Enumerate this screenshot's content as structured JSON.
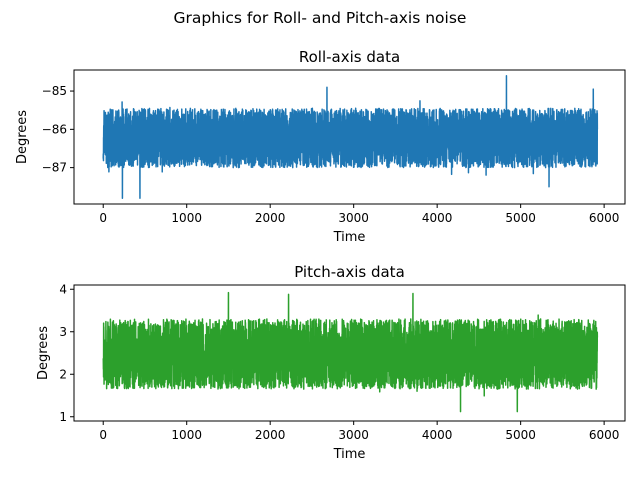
{
  "figure": {
    "suptitle": "Graphics for Roll- and Pitch-axis noise"
  },
  "chart_data": [
    {
      "type": "line",
      "title": "Roll-axis data",
      "xlabel": "Time",
      "ylabel": "Degrees",
      "xlim": [
        -350,
        6250
      ],
      "ylim": [
        -87.95,
        -84.45
      ],
      "xticks": [
        0,
        1000,
        2000,
        3000,
        4000,
        5000,
        6000
      ],
      "xtick_labels": [
        "0",
        "1000",
        "2000",
        "3000",
        "4000",
        "5000",
        "6000"
      ],
      "yticks": [
        -87,
        -86,
        -85
      ],
      "ytick_labels": [
        "−87",
        "−86",
        "−85"
      ],
      "grid": false,
      "series": [
        {
          "color": "#1f77b4",
          "n_points": 5920,
          "x_range": [
            0,
            5919
          ],
          "center": -86.25,
          "typical_band": [
            -87.0,
            -85.45
          ],
          "spikes": [
            {
              "x": 230,
              "y": -87.8
            },
            {
              "x": 440,
              "y": -87.8
            },
            {
              "x": 2680,
              "y": -84.9
            },
            {
              "x": 4830,
              "y": -84.6
            },
            {
              "x": 5340,
              "y": -87.5
            },
            {
              "x": 5870,
              "y": -84.95
            }
          ]
        }
      ]
    },
    {
      "type": "line",
      "title": "Pitch-axis data",
      "xlabel": "Time",
      "ylabel": "Degrees",
      "xlim": [
        -350,
        6250
      ],
      "ylim": [
        0.9,
        4.1
      ],
      "xticks": [
        0,
        1000,
        2000,
        3000,
        4000,
        5000,
        6000
      ],
      "xtick_labels": [
        "0",
        "1000",
        "2000",
        "3000",
        "4000",
        "5000",
        "6000"
      ],
      "yticks": [
        1,
        2,
        3,
        4
      ],
      "ytick_labels": [
        "1",
        "2",
        "3",
        "4"
      ],
      "grid": false,
      "series": [
        {
          "color": "#2ca02c",
          "n_points": 5920,
          "x_range": [
            0,
            5919
          ],
          "center": 2.45,
          "typical_band": [
            1.65,
            3.3
          ],
          "spikes": [
            {
              "x": 1500,
              "y": 3.92
            },
            {
              "x": 2220,
              "y": 3.88
            },
            {
              "x": 3710,
              "y": 3.9
            },
            {
              "x": 4280,
              "y": 1.12
            },
            {
              "x": 4960,
              "y": 1.12
            }
          ]
        }
      ]
    }
  ]
}
